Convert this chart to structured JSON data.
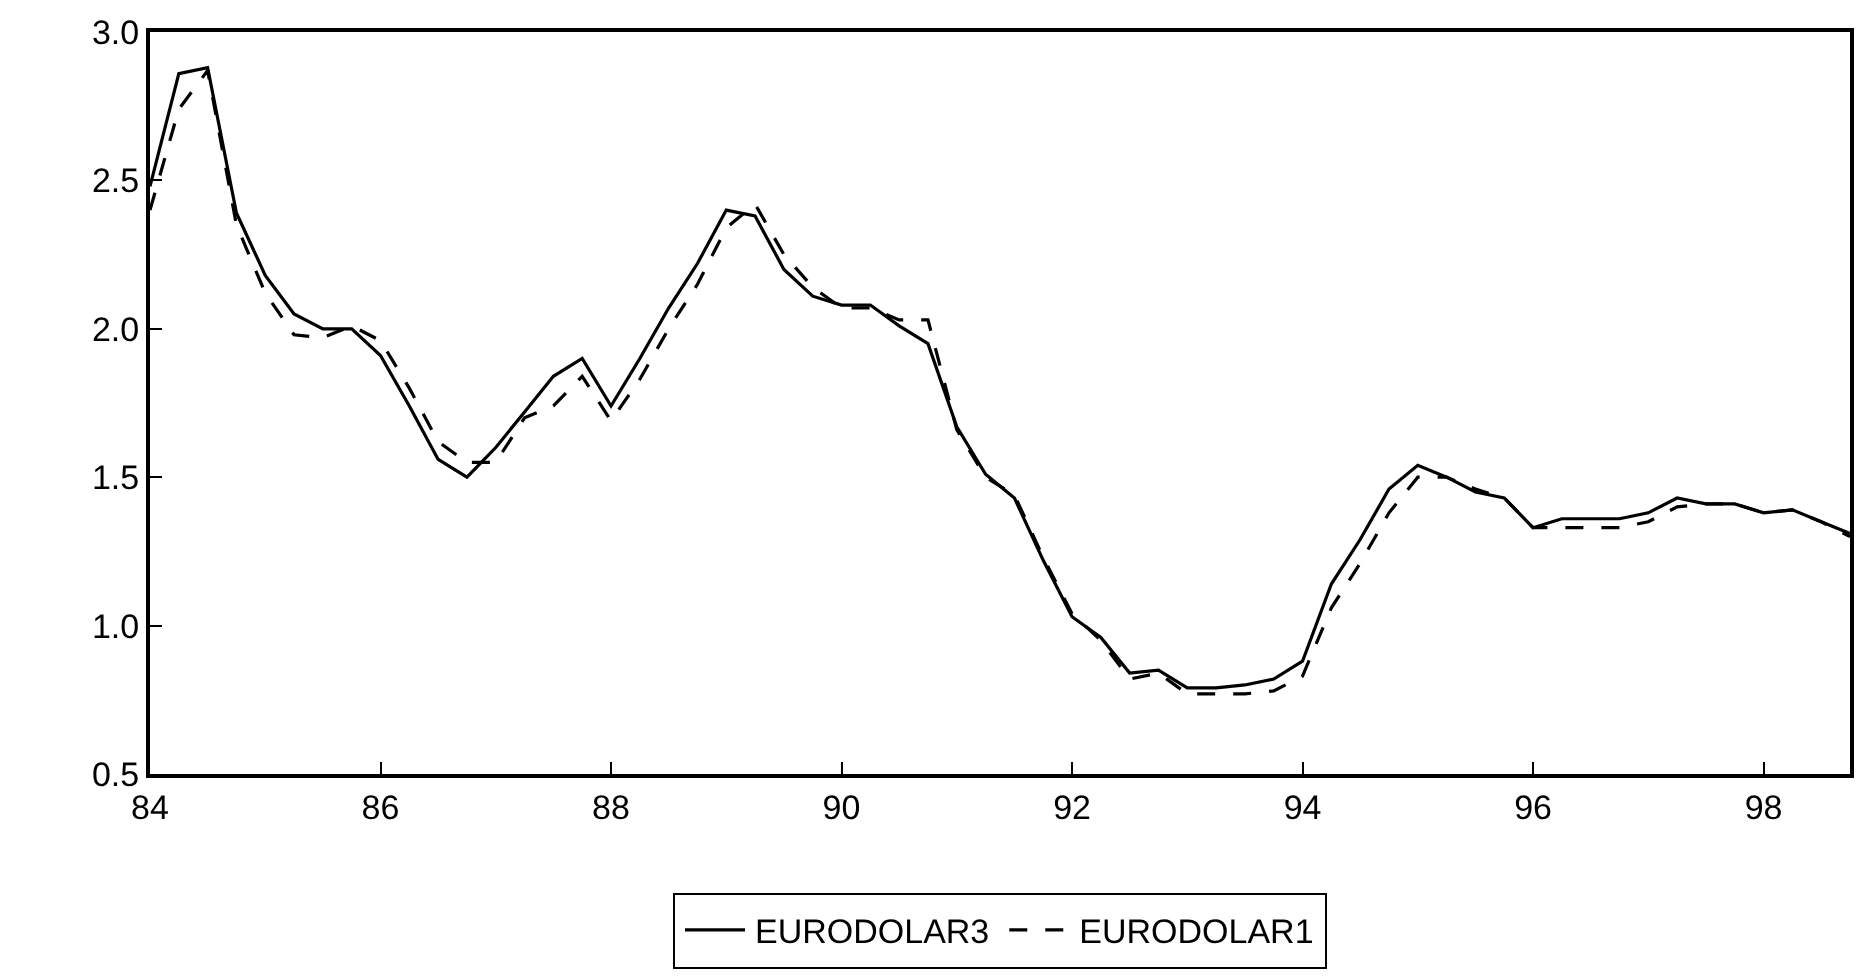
{
  "chart_data": {
    "type": "line",
    "x": [
      84,
      84.25,
      84.5,
      84.75,
      85,
      85.25,
      85.5,
      85.75,
      86,
      86.25,
      86.5,
      86.75,
      87,
      87.25,
      87.5,
      87.75,
      88,
      88.25,
      88.5,
      88.75,
      89,
      89.25,
      89.5,
      89.75,
      90,
      90.25,
      90.5,
      90.75,
      91,
      91.25,
      91.5,
      91.75,
      92,
      92.25,
      92.5,
      92.75,
      93,
      93.25,
      93.5,
      93.75,
      94,
      94.25,
      94.5,
      94.75,
      95,
      95.25,
      95.5,
      95.75,
      96,
      96.25,
      96.5,
      96.75,
      97,
      97.25,
      97.5,
      97.75,
      98,
      98.25,
      98.5,
      98.75
    ],
    "series": [
      {
        "name": "EURODOLAR3",
        "color": "#000000",
        "line_style": "solid",
        "values": [
          2.48,
          2.86,
          2.88,
          2.39,
          2.18,
          2.05,
          2.0,
          2.0,
          1.91,
          1.74,
          1.56,
          1.5,
          1.6,
          1.72,
          1.84,
          1.9,
          1.74,
          1.9,
          2.07,
          2.22,
          2.4,
          2.38,
          2.2,
          2.11,
          2.08,
          2.08,
          2.01,
          1.95,
          1.67,
          1.51,
          1.43,
          1.22,
          1.03,
          0.96,
          0.84,
          0.85,
          0.79,
          0.79,
          0.8,
          0.82,
          0.88,
          1.14,
          1.29,
          1.46,
          1.54,
          1.5,
          1.45,
          1.43,
          1.33,
          1.36,
          1.36,
          1.36,
          1.38,
          1.43,
          1.41,
          1.41,
          1.38,
          1.39,
          1.35,
          1.31
        ]
      },
      {
        "name": "EURODOLAR1",
        "color": "#000000",
        "line_style": "dashed",
        "values": [
          2.4,
          2.74,
          2.87,
          2.35,
          2.12,
          1.98,
          1.97,
          2.01,
          1.96,
          1.8,
          1.62,
          1.55,
          1.55,
          1.7,
          1.74,
          1.84,
          1.69,
          1.83,
          2.0,
          2.15,
          2.34,
          2.42,
          2.25,
          2.14,
          2.07,
          2.07,
          2.03,
          2.03,
          1.66,
          1.5,
          1.44,
          1.23,
          1.04,
          0.95,
          0.82,
          0.84,
          0.77,
          0.77,
          0.77,
          0.78,
          0.83,
          1.06,
          1.21,
          1.38,
          1.5,
          1.5,
          1.46,
          1.43,
          1.33,
          1.33,
          1.33,
          1.33,
          1.35,
          1.4,
          1.41,
          1.41,
          1.38,
          1.39,
          1.35,
          1.3
        ]
      }
    ],
    "xlim": [
      84,
      98.75
    ],
    "xticks": [
      {
        "value": 84,
        "label": "84"
      },
      {
        "value": 86,
        "label": "86"
      },
      {
        "value": 88,
        "label": "88"
      },
      {
        "value": 90,
        "label": "90"
      },
      {
        "value": 92,
        "label": "92"
      },
      {
        "value": 94,
        "label": "94"
      },
      {
        "value": 96,
        "label": "96"
      },
      {
        "value": 98,
        "label": "98"
      }
    ],
    "ylim": [
      0.5,
      3.0
    ],
    "yticks": [
      {
        "value": 0.5,
        "label": "0.5"
      },
      {
        "value": 1.0,
        "label": "1.0"
      },
      {
        "value": 1.5,
        "label": "1.5"
      },
      {
        "value": 2.0,
        "label": "2.0"
      },
      {
        "value": 2.5,
        "label": "2.5"
      },
      {
        "value": 3.0,
        "label": "3.0"
      }
    ],
    "grid": false,
    "legend": "bottom",
    "marker": "none"
  }
}
